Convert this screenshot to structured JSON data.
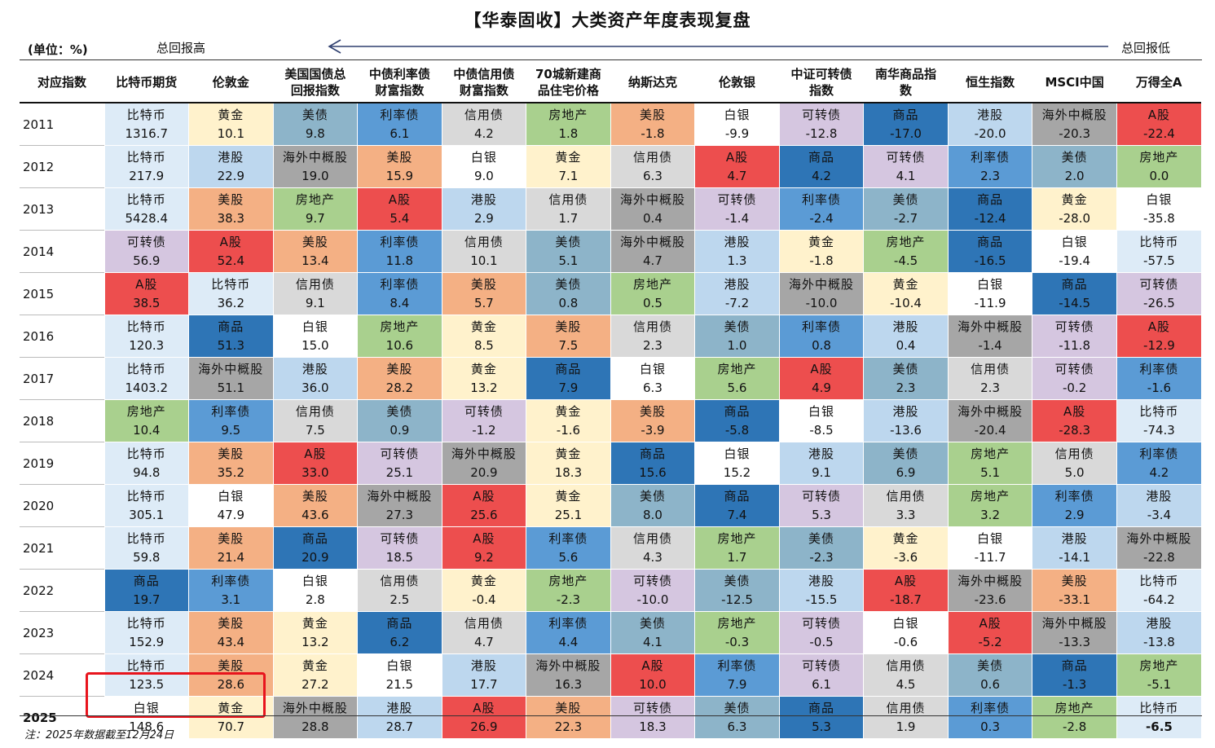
{
  "title": "【华泰固收】大类资产年度表现复盘",
  "unit_label": "(单位：%)",
  "left_label": "总回报高",
  "right_label": "总回报低",
  "note": "注：2025年数据截至12月24日",
  "colors": {
    "比特币": "#ddebf7",
    "黄金": "#fff2cc",
    "美债": "#8db4c9",
    "利率债": "#5b9bd5",
    "信用债": "#d9d9d9",
    "房地产": "#a9d08e",
    "美股": "#f4b084",
    "白银": "#ffffff",
    "可转债": "#d5c6e0",
    "商品": "#2e75b6",
    "港股": "#bdd7ee",
    "海外中概股": "#a6a6a6",
    "A股": "#ed4e4e",
    "highlight_border": "#e8141d"
  },
  "headers": [
    "对应指数",
    "比特币期货",
    "伦敦金",
    "美国国债总\n回报指数",
    "中债利率债\n财富指数",
    "中债信用债\n财富指数",
    "70城新建商\n品住宅价格",
    "纳斯达克",
    "伦敦银",
    "中证可转债\n指数",
    "南华商品指\n数",
    "恒生指数",
    "MSCI中国",
    "万得全A"
  ],
  "rows": [
    {
      "year": "2011",
      "cells": [
        [
          "比特币",
          "1316.7"
        ],
        [
          "黄金",
          "10.1"
        ],
        [
          "美债",
          "9.8"
        ],
        [
          "利率债",
          "6.1"
        ],
        [
          "信用债",
          "4.2"
        ],
        [
          "房地产",
          "1.8"
        ],
        [
          "美股",
          "-1.8"
        ],
        [
          "白银",
          "-9.9"
        ],
        [
          "可转债",
          "-12.8"
        ],
        [
          "商品",
          "-17.0"
        ],
        [
          "港股",
          "-20.0"
        ],
        [
          "海外中概股",
          "-20.3"
        ],
        [
          "A股",
          "-22.4"
        ]
      ]
    },
    {
      "year": "2012",
      "cells": [
        [
          "比特币",
          "217.9"
        ],
        [
          "港股",
          "22.9"
        ],
        [
          "海外中概股",
          "19.0"
        ],
        [
          "美股",
          "15.9"
        ],
        [
          "白银",
          "9.0"
        ],
        [
          "黄金",
          "7.1"
        ],
        [
          "信用债",
          "6.3"
        ],
        [
          "A股",
          "4.7"
        ],
        [
          "商品",
          "4.2"
        ],
        [
          "可转债",
          "4.1"
        ],
        [
          "利率债",
          "2.3"
        ],
        [
          "美债",
          "2.0"
        ],
        [
          "房地产",
          "0.0"
        ]
      ]
    },
    {
      "year": "2013",
      "cells": [
        [
          "比特币",
          "5428.4"
        ],
        [
          "美股",
          "38.3"
        ],
        [
          "房地产",
          "9.7"
        ],
        [
          "A股",
          "5.4"
        ],
        [
          "港股",
          "2.9"
        ],
        [
          "信用债",
          "1.7"
        ],
        [
          "海外中概股",
          "0.4"
        ],
        [
          "可转债",
          "-1.4"
        ],
        [
          "利率债",
          "-2.4"
        ],
        [
          "美债",
          "-2.7"
        ],
        [
          "商品",
          "-12.4"
        ],
        [
          "黄金",
          "-28.0"
        ],
        [
          "白银",
          "-35.8"
        ]
      ]
    },
    {
      "year": "2014",
      "cells": [
        [
          "可转债",
          "56.9"
        ],
        [
          "A股",
          "52.4"
        ],
        [
          "美股",
          "13.4"
        ],
        [
          "利率债",
          "11.8"
        ],
        [
          "信用债",
          "10.1"
        ],
        [
          "美债",
          "5.1"
        ],
        [
          "海外中概股",
          "4.7"
        ],
        [
          "港股",
          "1.3"
        ],
        [
          "黄金",
          "-1.8"
        ],
        [
          "房地产",
          "-4.5"
        ],
        [
          "商品",
          "-16.5"
        ],
        [
          "白银",
          "-19.4"
        ],
        [
          "比特币",
          "-57.5"
        ]
      ]
    },
    {
      "year": "2015",
      "cells": [
        [
          "A股",
          "38.5"
        ],
        [
          "比特币",
          "36.2"
        ],
        [
          "信用债",
          "9.1"
        ],
        [
          "利率债",
          "8.4"
        ],
        [
          "美股",
          "5.7"
        ],
        [
          "美债",
          "0.8"
        ],
        [
          "房地产",
          "0.5"
        ],
        [
          "港股",
          "-7.2"
        ],
        [
          "海外中概股",
          "-10.0"
        ],
        [
          "黄金",
          "-10.4"
        ],
        [
          "白银",
          "-11.9"
        ],
        [
          "商品",
          "-14.5"
        ],
        [
          "可转债",
          "-26.5"
        ]
      ]
    },
    {
      "year": "2016",
      "cells": [
        [
          "比特币",
          "120.3"
        ],
        [
          "商品",
          "51.3"
        ],
        [
          "白银",
          "15.0"
        ],
        [
          "房地产",
          "10.6"
        ],
        [
          "黄金",
          "8.5"
        ],
        [
          "美股",
          "7.5"
        ],
        [
          "信用债",
          "2.3"
        ],
        [
          "美债",
          "1.0"
        ],
        [
          "利率债",
          "0.8"
        ],
        [
          "港股",
          "0.4"
        ],
        [
          "海外中概股",
          "-1.4"
        ],
        [
          "可转债",
          "-11.8"
        ],
        [
          "A股",
          "-12.9"
        ]
      ]
    },
    {
      "year": "2017",
      "cells": [
        [
          "比特币",
          "1403.2"
        ],
        [
          "海外中概股",
          "51.1"
        ],
        [
          "港股",
          "36.0"
        ],
        [
          "美股",
          "28.2"
        ],
        [
          "黄金",
          "13.2"
        ],
        [
          "商品",
          "7.9"
        ],
        [
          "白银",
          "6.3"
        ],
        [
          "房地产",
          "5.6"
        ],
        [
          "A股",
          "4.9"
        ],
        [
          "美债",
          "2.3"
        ],
        [
          "信用债",
          "2.3"
        ],
        [
          "可转债",
          "-0.2"
        ],
        [
          "利率债",
          "-1.6"
        ]
      ]
    },
    {
      "year": "2018",
      "cells": [
        [
          "房地产",
          "10.4"
        ],
        [
          "利率债",
          "9.5"
        ],
        [
          "信用债",
          "7.5"
        ],
        [
          "美债",
          "0.9"
        ],
        [
          "可转债",
          "-1.2"
        ],
        [
          "黄金",
          "-1.6"
        ],
        [
          "美股",
          "-3.9"
        ],
        [
          "商品",
          "-5.8"
        ],
        [
          "白银",
          "-8.5"
        ],
        [
          "港股",
          "-13.6"
        ],
        [
          "海外中概股",
          "-20.4"
        ],
        [
          "A股",
          "-28.3"
        ],
        [
          "比特币",
          "-74.3"
        ]
      ]
    },
    {
      "year": "2019",
      "cells": [
        [
          "比特币",
          "94.8"
        ],
        [
          "美股",
          "35.2"
        ],
        [
          "A股",
          "33.0"
        ],
        [
          "可转债",
          "25.1"
        ],
        [
          "海外中概股",
          "20.9"
        ],
        [
          "黄金",
          "18.3"
        ],
        [
          "商品",
          "15.6"
        ],
        [
          "白银",
          "15.2"
        ],
        [
          "港股",
          "9.1"
        ],
        [
          "美债",
          "6.9"
        ],
        [
          "房地产",
          "5.1"
        ],
        [
          "信用债",
          "5.0"
        ],
        [
          "利率债",
          "4.2"
        ]
      ]
    },
    {
      "year": "2020",
      "cells": [
        [
          "比特币",
          "305.1"
        ],
        [
          "白银",
          "47.9"
        ],
        [
          "美股",
          "43.6"
        ],
        [
          "海外中概股",
          "27.3"
        ],
        [
          "A股",
          "25.6"
        ],
        [
          "黄金",
          "25.1"
        ],
        [
          "美债",
          "8.0"
        ],
        [
          "商品",
          "7.4"
        ],
        [
          "可转债",
          "5.3"
        ],
        [
          "信用债",
          "3.3"
        ],
        [
          "房地产",
          "3.2"
        ],
        [
          "利率债",
          "2.9"
        ],
        [
          "港股",
          "-3.4"
        ]
      ]
    },
    {
      "year": "2021",
      "cells": [
        [
          "比特币",
          "59.8"
        ],
        [
          "美股",
          "21.4"
        ],
        [
          "商品",
          "20.9"
        ],
        [
          "可转债",
          "18.5"
        ],
        [
          "A股",
          "9.2"
        ],
        [
          "利率债",
          "5.6"
        ],
        [
          "信用债",
          "4.3"
        ],
        [
          "房地产",
          "1.7"
        ],
        [
          "美债",
          "-2.3"
        ],
        [
          "黄金",
          "-3.6"
        ],
        [
          "白银",
          "-11.7"
        ],
        [
          "港股",
          "-14.1"
        ],
        [
          "海外中概股",
          "-22.8"
        ]
      ]
    },
    {
      "year": "2022",
      "cells": [
        [
          "商品",
          "19.7"
        ],
        [
          "利率债",
          "3.1"
        ],
        [
          "白银",
          "2.8"
        ],
        [
          "信用债",
          "2.5"
        ],
        [
          "黄金",
          "-0.4"
        ],
        [
          "房地产",
          "-2.3"
        ],
        [
          "可转债",
          "-10.0"
        ],
        [
          "美债",
          "-12.5"
        ],
        [
          "港股",
          "-15.5"
        ],
        [
          "A股",
          "-18.7"
        ],
        [
          "海外中概股",
          "-23.6"
        ],
        [
          "美股",
          "-33.1"
        ],
        [
          "比特币",
          "-64.2"
        ]
      ]
    },
    {
      "year": "2023",
      "cells": [
        [
          "比特币",
          "152.9"
        ],
        [
          "美股",
          "43.4"
        ],
        [
          "黄金",
          "13.2"
        ],
        [
          "商品",
          "6.2"
        ],
        [
          "信用债",
          "4.7"
        ],
        [
          "利率债",
          "4.4"
        ],
        [
          "美债",
          "4.1"
        ],
        [
          "房地产",
          "-0.3"
        ],
        [
          "可转债",
          "-0.5"
        ],
        [
          "白银",
          "-0.6"
        ],
        [
          "A股",
          "-5.2"
        ],
        [
          "海外中概股",
          "-13.3"
        ],
        [
          "港股",
          "-13.8"
        ]
      ]
    },
    {
      "year": "2024",
      "cells": [
        [
          "比特币",
          "123.5"
        ],
        [
          "美股",
          "28.6"
        ],
        [
          "黄金",
          "27.2"
        ],
        [
          "白银",
          "21.5"
        ],
        [
          "港股",
          "17.7"
        ],
        [
          "海外中概股",
          "16.3"
        ],
        [
          "A股",
          "10.0"
        ],
        [
          "利率债",
          "7.9"
        ],
        [
          "可转债",
          "6.1"
        ],
        [
          "信用债",
          "4.5"
        ],
        [
          "美债",
          "0.6"
        ],
        [
          "商品",
          "-1.3"
        ],
        [
          "房地产",
          "-5.1"
        ]
      ]
    },
    {
      "year": "2025",
      "cells": [
        [
          "白银",
          "148.6"
        ],
        [
          "黄金",
          "70.7"
        ],
        [
          "海外中概股",
          "28.8"
        ],
        [
          "港股",
          "28.7"
        ],
        [
          "A股",
          "26.9"
        ],
        [
          "美股",
          "22.3"
        ],
        [
          "可转债",
          "18.3"
        ],
        [
          "美债",
          "6.3"
        ],
        [
          "商品",
          "5.3"
        ],
        [
          "信用债",
          "1.9"
        ],
        [
          "利率债",
          "0.3"
        ],
        [
          "房地产",
          "-2.8"
        ],
        [
          "比特币",
          "-6.5"
        ]
      ]
    }
  ]
}
